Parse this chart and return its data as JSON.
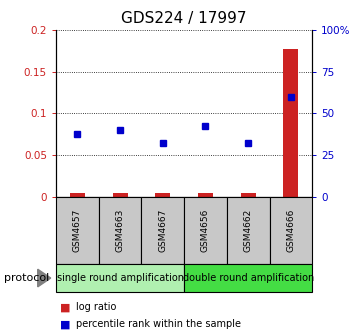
{
  "title": "GDS224 / 17997",
  "samples": [
    "GSM4657",
    "GSM4663",
    "GSM4667",
    "GSM4656",
    "GSM4662",
    "GSM4666"
  ],
  "log_ratio": [
    0.004,
    0.004,
    0.004,
    0.004,
    0.004,
    0.178
  ],
  "percentile_rank": [
    37.5,
    40.0,
    32.5,
    42.5,
    32.0,
    60.0
  ],
  "ylim_left": [
    0,
    0.2
  ],
  "ylim_right": [
    0,
    100
  ],
  "yticks_left": [
    0,
    0.05,
    0.1,
    0.15,
    0.2
  ],
  "ytick_labels_left": [
    "0",
    "0.05",
    "0.1",
    "0.15",
    "0.2"
  ],
  "yticks_right": [
    0,
    25,
    50,
    75,
    100
  ],
  "ytick_labels_right": [
    "0",
    "25",
    "50",
    "75",
    "100%"
  ],
  "bar_color": "#cc2222",
  "dot_color": "#0000cc",
  "sample_box_color": "#c8c8c8",
  "proto_color_single": "#b0f0b0",
  "proto_color_double": "#44dd44",
  "title_fontsize": 11,
  "tick_fontsize": 7.5,
  "sample_fontsize": 6.5,
  "legend_fontsize": 7,
  "proto_fontsize": 7,
  "protocol_label_fontsize": 8,
  "n_samples": 6,
  "n_single": 3,
  "n_double": 3
}
